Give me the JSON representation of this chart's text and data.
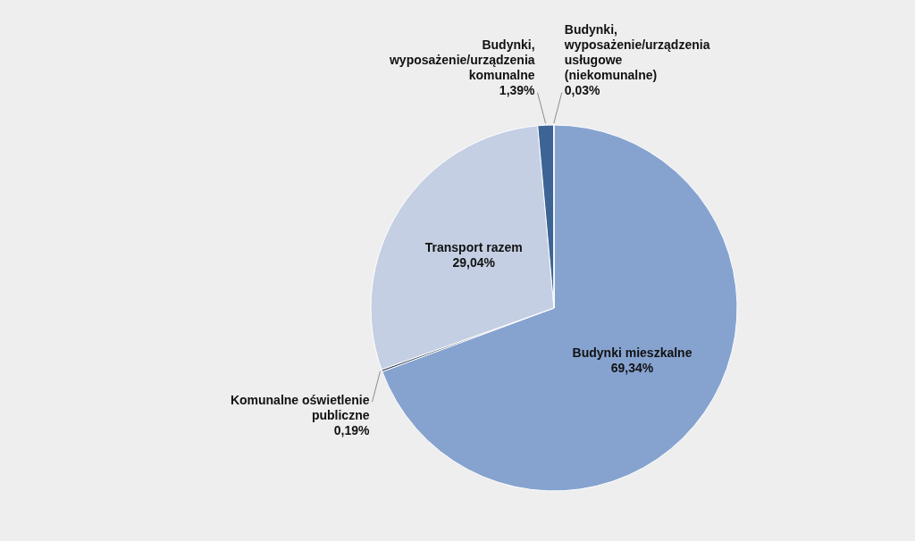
{
  "chart_data": {
    "type": "pie",
    "categories": [
      "Budynki mieszkalne",
      "Komunalne oświetlenie publiczne",
      "Transport razem",
      "Budynki, wyposażenie/urządzenia komunalne",
      "Budynki, wyposażenie/urządzenia usługowe (niekomunalne)"
    ],
    "values": [
      69.34,
      0.19,
      29.04,
      1.39,
      0.03
    ],
    "colors": [
      "#86a3d0",
      "#3e4a5e",
      "#c4cfe3",
      "#3c6494",
      "#6d8fc4"
    ],
    "value_labels": [
      "69,34%",
      "0,19%",
      "29,04%",
      "1,39%",
      "0,03%"
    ]
  }
}
